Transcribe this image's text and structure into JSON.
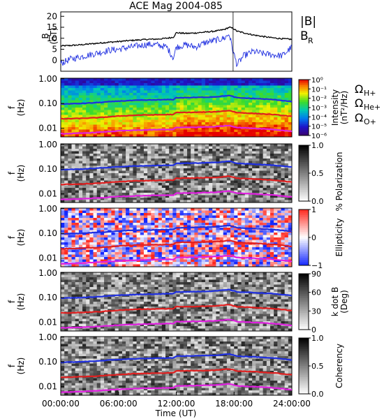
{
  "title": "ACE Mag 2004-085",
  "colors": {
    "b_total": "#000000",
    "b_r": "#1f2fe0",
    "h_plus": "#1f2fe0",
    "he_plus": "#e01f1f",
    "o_plus": "#e020e0"
  },
  "x_axis": {
    "label": "Time (UT)",
    "range_hours": [
      0,
      24
    ],
    "ticks": [
      {
        "t": 0,
        "label": "00:00:00"
      },
      {
        "t": 6,
        "label": "06:00:00"
      },
      {
        "t": 12,
        "label": "12:00:00"
      },
      {
        "t": 18,
        "label": "18:00:00"
      },
      {
        "t": 24,
        "label": "24:00:00"
      }
    ]
  },
  "chart_data": [
    {
      "type": "line",
      "ylabel_top": "B",
      "ylabel_bottom": "(nT)",
      "ylim": [
        -5,
        22
      ],
      "yticks": [
        "20",
        "15",
        "10",
        "5",
        "0"
      ],
      "ytick_values": [
        20,
        15,
        10,
        5,
        0
      ],
      "legend": [
        "|B|",
        "B_R"
      ],
      "legend_main": [
        "|B|",
        "B"
      ],
      "legend_sub": [
        "",
        "R"
      ],
      "x": [
        0,
        1,
        2,
        3,
        4,
        5,
        6,
        7,
        8,
        9,
        10,
        11,
        11.7,
        12,
        13,
        14,
        15,
        16,
        17,
        17.5,
        17.9,
        18.3,
        19,
        20,
        21,
        22,
        23,
        24
      ],
      "series": [
        {
          "name": "|B|",
          "values": [
            6.5,
            6.7,
            7.0,
            7.4,
            7.8,
            8.2,
            8.5,
            8.9,
            9.2,
            9.5,
            9.6,
            10.0,
            10.5,
            12.5,
            12.2,
            12.4,
            12.8,
            13.2,
            14.0,
            15.0,
            14.5,
            13.2,
            12.5,
            11.5,
            10.8,
            10.2,
            9.8,
            9.5
          ]
        },
        {
          "name": "B_R",
          "values": [
            -1.5,
            0.5,
            1.5,
            2.5,
            3.5,
            4.5,
            5.0,
            5.8,
            6.5,
            7.2,
            7.0,
            6.0,
            1.0,
            6.0,
            7.0,
            6.0,
            8.0,
            9.0,
            10.0,
            12.0,
            4.0,
            -2.0,
            2.0,
            4.0,
            3.0,
            2.5,
            2.0,
            6.0
          ]
        }
      ]
    },
    {
      "type": "heatmap",
      "ylabel_top": "f",
      "ylabel_bottom": "(Hz)",
      "ylim": [
        0.005,
        1.0
      ],
      "yscale": "log",
      "yticks": [
        "1.00",
        "0.10",
        "0.01"
      ],
      "ytick_values": [
        1.0,
        0.1,
        0.01
      ],
      "colorbar_label": "Intensity (nT²/Hz)",
      "colorbar_label_top": "Intensity",
      "colorbar_label_bottom": "(nT²/Hz)",
      "colorbar_ticks": [
        "10⁰",
        "10⁻¹",
        "10⁻²",
        "10⁻³",
        "10⁻⁴",
        "10⁻⁵",
        "10⁻⁶"
      ],
      "colormap": "rainbow",
      "curve_labels": [
        {
          "main": "Ω",
          "sub": "H+"
        },
        {
          "main": "Ω",
          "sub": "He+"
        },
        {
          "main": "Ω",
          "sub": "O+"
        }
      ]
    },
    {
      "type": "heatmap",
      "ylabel_top": "f",
      "ylabel_bottom": "(Hz)",
      "yscale": "log",
      "yticks": [
        "1.00",
        "0.10",
        "0.01"
      ],
      "ytick_values": [
        1.0,
        0.1,
        0.01
      ],
      "colorbar_label": "% Polarization",
      "colorbar_ticks": [
        "1.0",
        "0.5",
        "0.0"
      ],
      "colormap": "grayscale"
    },
    {
      "type": "heatmap",
      "ylabel_top": "f",
      "ylabel_bottom": "(Hz)",
      "yscale": "log",
      "yticks": [
        "1.00",
        "0.10",
        "0.01"
      ],
      "ytick_values": [
        1.0,
        0.1,
        0.01
      ],
      "colorbar_label": "Ellipticity",
      "colorbar_ticks": [
        "1",
        "0",
        "−1"
      ],
      "colormap": "blue-white-red"
    },
    {
      "type": "heatmap",
      "ylabel_top": "f",
      "ylabel_bottom": "(Hz)",
      "yscale": "log",
      "yticks": [
        "1.00",
        "0.10",
        "0.01"
      ],
      "ytick_values": [
        1.0,
        0.1,
        0.01
      ],
      "colorbar_label": "k dot B (Deg)",
      "colorbar_label_top": "k dot B",
      "colorbar_label_bottom": "(Deg)",
      "colorbar_ticks": [
        "90",
        "60",
        "30",
        "0"
      ],
      "colormap": "grayscale"
    },
    {
      "type": "heatmap",
      "ylabel_top": "f",
      "ylabel_bottom": "(Hz)",
      "yscale": "log",
      "yticks": [
        "1.00",
        "0.10",
        "0.01"
      ],
      "ytick_values": [
        1.0,
        0.1,
        0.01
      ],
      "colorbar_label": "Coherency",
      "colorbar_ticks": [
        "1.0",
        "0.5",
        "0.0"
      ],
      "colormap": "grayscale"
    }
  ],
  "gyrofrequency_curves": {
    "x": [
      0,
      2,
      4,
      6,
      8,
      10,
      11.7,
      12,
      14,
      16,
      17.5,
      18.3,
      20,
      22,
      24
    ],
    "H+": [
      0.095,
      0.1,
      0.11,
      0.125,
      0.135,
      0.14,
      0.145,
      0.17,
      0.175,
      0.185,
      0.21,
      0.17,
      0.16,
      0.145,
      0.12
    ],
    "He+": [
      0.024,
      0.025,
      0.027,
      0.031,
      0.034,
      0.035,
      0.036,
      0.043,
      0.044,
      0.046,
      0.052,
      0.043,
      0.04,
      0.036,
      0.03
    ],
    "O+": [
      0.006,
      0.0063,
      0.0069,
      0.0078,
      0.0084,
      0.0088,
      0.009,
      0.0107,
      0.011,
      0.0116,
      0.013,
      0.0107,
      0.01,
      0.009,
      0.0075
    ]
  }
}
